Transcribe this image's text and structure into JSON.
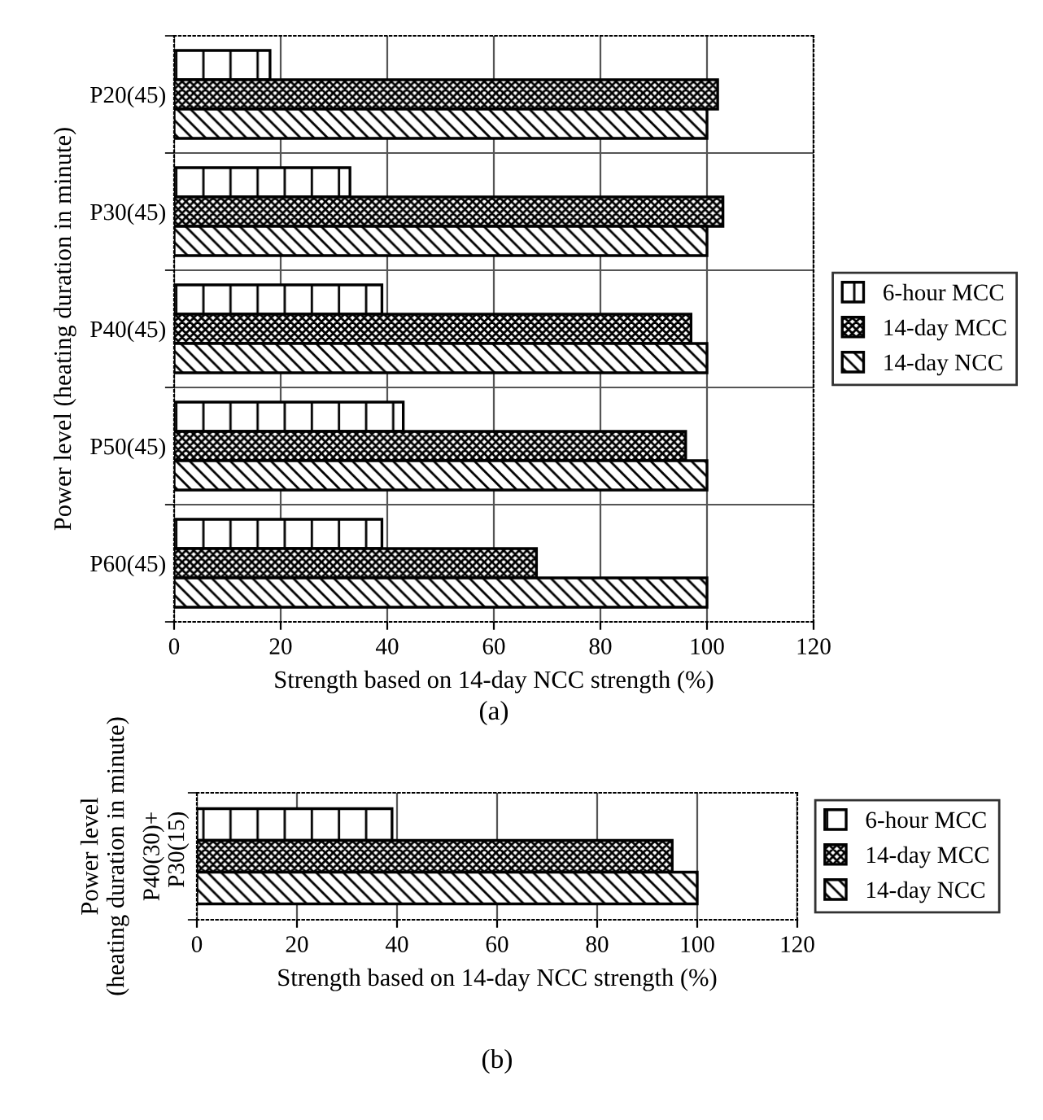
{
  "chart_data": [
    {
      "type": "bar",
      "orientation": "horizontal",
      "categories": [
        "P20(45)",
        "P30(45)",
        "P40(45)",
        "P50(45)",
        "P60(45)"
      ],
      "series": [
        {
          "name": "6-hour MCC",
          "color": "#000000",
          "values": [
            18,
            33,
            39,
            43,
            39
          ]
        },
        {
          "name": "14-day MCC",
          "color": "#000000",
          "values": [
            102,
            103,
            97,
            96,
            68
          ]
        },
        {
          "name": "14-day NCC",
          "color": "#000000",
          "values": [
            100,
            100,
            100,
            100,
            100
          ]
        }
      ],
      "xlim": [
        0,
        120
      ],
      "xticks": [
        0,
        20,
        40,
        60,
        80,
        100,
        120
      ],
      "xlabel": "Strength based on 14-day NCC strength (%)",
      "ylabel": "Power level (heating duration in minute)",
      "grid": true,
      "legend": "right",
      "annotations": [
        "(a)"
      ]
    },
    {
      "type": "bar",
      "orientation": "horizontal",
      "categories": [
        "P40(30)+\nP30(15)"
      ],
      "series": [
        {
          "name": "6-hour MCC",
          "color": "#000000",
          "values": [
            39
          ]
        },
        {
          "name": "14-day MCC",
          "color": "#000000",
          "values": [
            95
          ]
        },
        {
          "name": "14-day NCC",
          "color": "#000000",
          "values": [
            100
          ]
        }
      ],
      "xlim": [
        0,
        120
      ],
      "xticks": [
        0,
        20,
        40,
        60,
        80,
        100,
        120
      ],
      "xlabel": "Strength based on 14-day NCC strength (%)",
      "ylabel": "Power level\n(heating duration in minute)",
      "grid": true,
      "legend": "right",
      "annotations": [
        "(b)"
      ]
    }
  ]
}
